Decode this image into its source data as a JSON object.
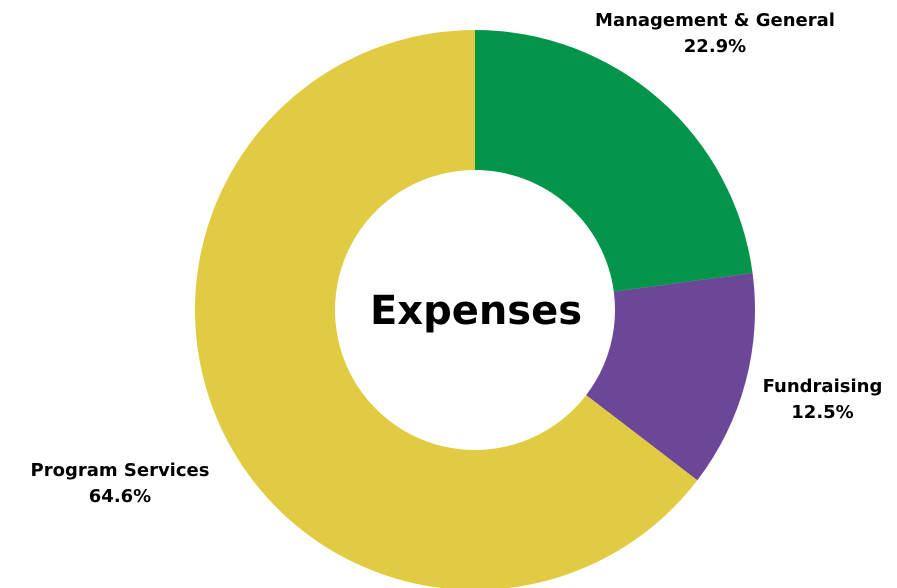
{
  "chart_data": {
    "type": "pie",
    "title": "Expenses",
    "series": [
      {
        "values": [
          {
            "label": "Management & General",
            "value": 22.9,
            "display": "22.9%",
            "color": "#04954a"
          },
          {
            "label": "Fundraising",
            "value": 12.5,
            "display": "12.5%",
            "color": "#6c4798"
          },
          {
            "label": "Program Services",
            "value": 64.6,
            "display": "64.6%",
            "color": "#e0cb42"
          }
        ]
      }
    ],
    "start_angle": "12 o'clock",
    "direction": "clockwise",
    "donut": true,
    "legend": "none (labels placed beside slices)"
  }
}
